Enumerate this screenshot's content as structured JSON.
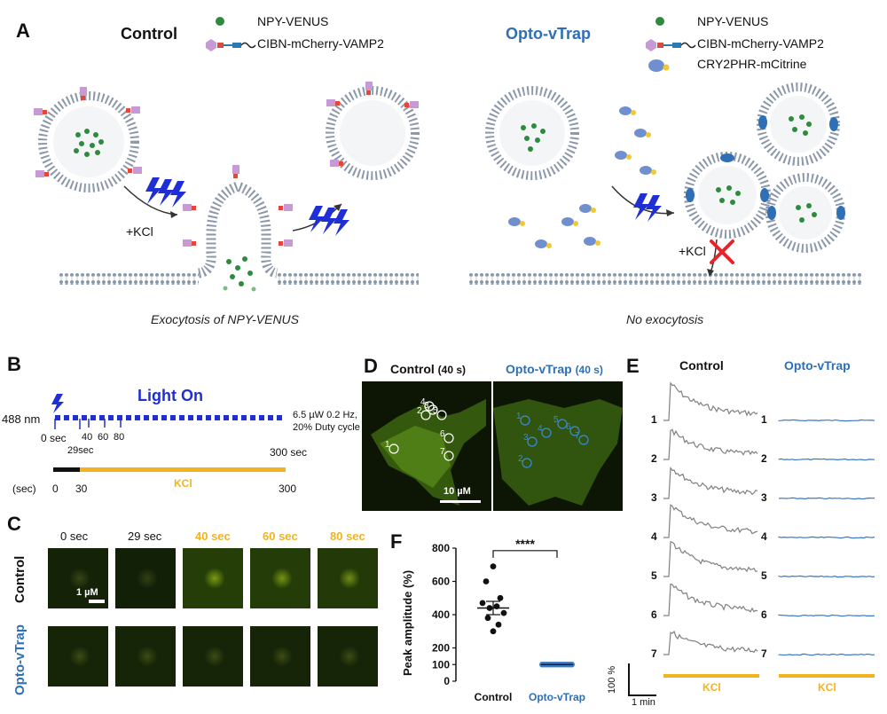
{
  "panels": {
    "a": "A",
    "b": "B",
    "c": "C",
    "d": "D",
    "e": "E",
    "f": "F"
  },
  "panel_a": {
    "control_title": "Control",
    "optovtrap_title": "Opto-vTrap",
    "legend_left": [
      "NPY-VENUS",
      "CIBN-mCherry-VAMP2"
    ],
    "legend_right": [
      "NPY-VENUS",
      "CIBN-mCherry-VAMP2",
      "CRY2PHR-mCitrine"
    ],
    "kcl_left": "+KCl",
    "kcl_right": "+KCl",
    "caption_left": "Exocytosis of NPY-VENUS",
    "caption_right": "No exocytosis",
    "colors": {
      "npy": "#2e8b3d",
      "cibn_head": "#c79ad6",
      "cibn_link": "#e0483a",
      "linker": "#2b7bb0",
      "cry2": "#6f8fd0",
      "lightning": "#1f2fd6",
      "membrane": "#8a98aa"
    }
  },
  "panel_b": {
    "wavelength": "488 nm",
    "light_on": "Light On",
    "power_note_1": "6.5 µW 0.2 Hz,",
    "power_note_2": "20% Duty cycle",
    "tick_0": "0 sec",
    "tick_29": "29sec",
    "tick_40": "40",
    "tick_60": "60",
    "tick_80": "80",
    "tick_300": "300 sec",
    "axis_label": "(sec)",
    "axis_0": "0",
    "axis_30": "30",
    "axis_300": "300",
    "kcl": "KCl"
  },
  "panel_c": {
    "times": [
      {
        "label": "0 sec",
        "highlight": false
      },
      {
        "label": "29 sec",
        "highlight": false
      },
      {
        "label": "40 sec",
        "highlight": true
      },
      {
        "label": "60 sec",
        "highlight": true
      },
      {
        "label": "80 sec",
        "highlight": true
      }
    ],
    "row_control": "Control",
    "row_opto": "Opto-vTrap",
    "scale_bar": "1 µM",
    "control_brightness": [
      0.25,
      0.2,
      0.95,
      0.9,
      0.85
    ],
    "opto_brightness": [
      0.3,
      0.3,
      0.3,
      0.3,
      0.3
    ]
  },
  "panel_d": {
    "control_title": "Control",
    "control_time": "(40 s)",
    "opto_title": "Opto-vTrap",
    "opto_time": "(40 s)",
    "scale_bar": "10 µM",
    "control_rois": [
      "1",
      "2",
      "3",
      "4",
      "5",
      "6",
      "7"
    ],
    "opto_rois": [
      "1",
      "2",
      "3",
      "4",
      "5",
      "6",
      "7"
    ]
  },
  "panel_e": {
    "control_title": "Control",
    "opto_title": "Opto-vTrap",
    "trace_labels": [
      "1",
      "2",
      "3",
      "4",
      "5",
      "6",
      "7"
    ],
    "scale_y": "100 %",
    "scale_x": "1 min",
    "kcl_left": "KCl",
    "kcl_right": "KCl",
    "control_color": "#808080",
    "opto_color": "#3a78c2"
  },
  "chart_data": {
    "type": "scatter",
    "title": "",
    "xlabel": "",
    "ylabel": "Peak amplitude (%)",
    "ylim": [
      0,
      800
    ],
    "yticks": [
      "0",
      "100",
      "200",
      "400",
      "600",
      "800"
    ],
    "categories": [
      "Control",
      "Opto-vTrap"
    ],
    "series": [
      {
        "values_control": [
          690,
          600,
          500,
          470,
          450,
          440,
          410,
          380,
          340,
          300
        ]
      },
      {
        "values_opto": [
          100,
          100,
          100,
          100,
          100,
          100,
          100,
          100,
          100,
          100,
          100,
          100,
          100,
          100,
          100
        ]
      }
    ],
    "means": [
      440,
      100
    ],
    "significance": "****",
    "colors": {
      "control": "#111111",
      "opto": "#3a78c2"
    }
  }
}
